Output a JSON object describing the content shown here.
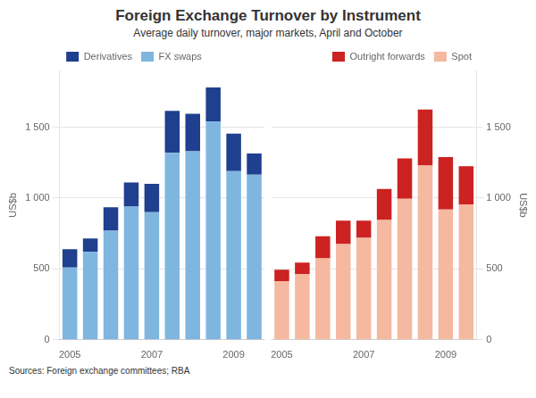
{
  "chart_data": [
    {
      "type": "bar",
      "title": "Foreign Exchange Turnover by Instrument",
      "subtitle": "Average daily turnover, major markets, April and October",
      "source": "Sources: Foreign exchange committees; RBA",
      "y_label": "US$b",
      "categories": [
        "2005",
        null,
        null,
        null,
        "2007",
        null,
        null,
        null,
        "2009",
        null
      ],
      "series": [
        {
          "name": "FX swaps",
          "color": "#7EB6E0",
          "values": [
            510,
            620,
            770,
            940,
            900,
            1320,
            1330,
            1540,
            1190,
            1165
          ]
        },
        {
          "name": "Derivatives",
          "color": "#1F3F8F",
          "values": [
            130,
            95,
            165,
            170,
            200,
            295,
            265,
            240,
            265,
            150
          ]
        }
      ],
      "stacked": true,
      "ylim": [
        0,
        1900
      ],
      "yticks": [
        0,
        500,
        {
          "value": 1000,
          "label": "1 000"
        },
        {
          "value": 1500,
          "label": "1 500"
        }
      ],
      "grid": true,
      "legend": "top"
    },
    {
      "type": "bar",
      "y_label": "US$b",
      "categories": [
        "2005",
        null,
        null,
        null,
        "2007",
        null,
        null,
        null,
        "2009",
        null
      ],
      "series": [
        {
          "name": "Spot",
          "color": "#F5B8A0",
          "values": [
            415,
            465,
            575,
            675,
            720,
            845,
            995,
            1230,
            920,
            955
          ]
        },
        {
          "name": "Outright forwards",
          "color": "#CC2222",
          "values": [
            80,
            80,
            155,
            165,
            120,
            220,
            285,
            395,
            370,
            270
          ]
        }
      ],
      "stacked": true,
      "ylim": [
        0,
        1900
      ],
      "yticks": [
        0,
        500,
        {
          "value": 1000,
          "label": "1 000"
        },
        {
          "value": 1500,
          "label": "1 500"
        }
      ],
      "grid": true,
      "legend": "top"
    }
  ]
}
